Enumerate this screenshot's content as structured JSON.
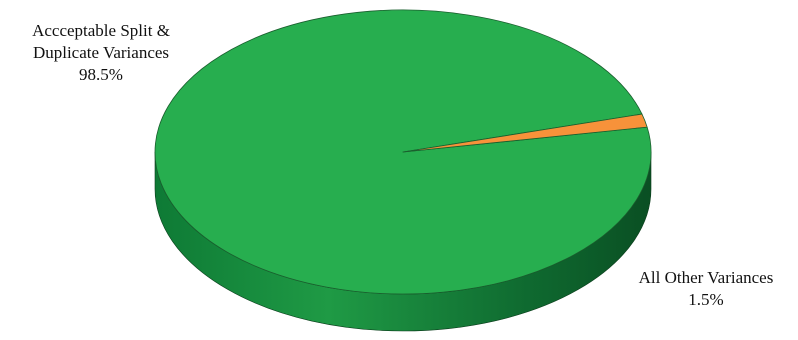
{
  "chart_data": {
    "type": "pie",
    "style": "3d",
    "title": "",
    "slices": [
      {
        "label_lines": [
          "Accceptable Split &",
          "Duplicate Variances"
        ],
        "percent_text": "98.5%",
        "value": 98.5,
        "color": "#27ae4f",
        "side_color": "#1e9140"
      },
      {
        "label_lines": [
          "All Other Variances"
        ],
        "percent_text": "1.5%",
        "value": 1.5,
        "color": "#f7923a",
        "side_color": "#8a4a1f"
      }
    ]
  }
}
